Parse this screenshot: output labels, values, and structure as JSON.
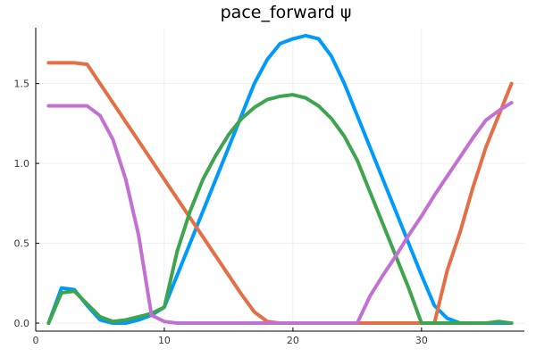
{
  "chart_data": {
    "type": "line",
    "title": "pace_forward ψ",
    "xlabel": "",
    "ylabel": "",
    "xlim": [
      0,
      38
    ],
    "ylim": [
      -0.05,
      1.85
    ],
    "x_ticks": [
      0,
      10,
      20,
      30
    ],
    "y_ticks": [
      0.0,
      0.5,
      1.0,
      1.5
    ],
    "x_tick_labels": [
      "0",
      "10",
      "20",
      "30"
    ],
    "y_tick_labels": [
      "0.0",
      "0.5",
      "1.0",
      "1.5"
    ],
    "grid": true,
    "legend": "none",
    "x": [
      1,
      2,
      3,
      4,
      5,
      6,
      7,
      8,
      9,
      10,
      11,
      12,
      13,
      14,
      15,
      16,
      17,
      18,
      19,
      20,
      21,
      22,
      23,
      24,
      25,
      26,
      27,
      28,
      29,
      30,
      31,
      32,
      33,
      34,
      35,
      36,
      37
    ],
    "series": [
      {
        "color": "#009AFA",
        "values": [
          0.0,
          0.22,
          0.21,
          0.11,
          0.02,
          0.0,
          0.0,
          0.02,
          0.05,
          0.1,
          0.3,
          0.5,
          0.7,
          0.9,
          1.1,
          1.3,
          1.5,
          1.65,
          1.75,
          1.78,
          1.8,
          1.78,
          1.67,
          1.5,
          1.3,
          1.1,
          0.9,
          0.7,
          0.5,
          0.3,
          0.11,
          0.03,
          0.0,
          0.0,
          0.0,
          0.0,
          0.0
        ]
      },
      {
        "color": "#E36F47",
        "values": [
          1.63,
          1.63,
          1.63,
          1.62,
          1.5,
          1.38,
          1.26,
          1.14,
          1.02,
          0.9,
          0.78,
          0.66,
          0.54,
          0.42,
          0.3,
          0.18,
          0.07,
          0.01,
          0.0,
          0.0,
          0.0,
          0.0,
          0.0,
          0.0,
          0.0,
          0.0,
          0.0,
          0.0,
          0.0,
          0.0,
          0.0,
          0.33,
          0.57,
          0.85,
          1.1,
          1.3,
          1.5
        ]
      },
      {
        "color": "#3EA44E",
        "values": [
          0.0,
          0.19,
          0.2,
          0.12,
          0.04,
          0.01,
          0.02,
          0.04,
          0.06,
          0.1,
          0.45,
          0.7,
          0.9,
          1.05,
          1.18,
          1.28,
          1.35,
          1.4,
          1.42,
          1.43,
          1.41,
          1.36,
          1.28,
          1.17,
          1.02,
          0.82,
          0.62,
          0.42,
          0.22,
          0.0,
          0.0,
          0.0,
          0.0,
          0.0,
          0.0,
          0.01,
          0.0
        ]
      },
      {
        "color": "#C271D2",
        "values": [
          1.36,
          1.36,
          1.36,
          1.36,
          1.3,
          1.15,
          0.9,
          0.55,
          0.05,
          0.01,
          0.0,
          0.0,
          0.0,
          0.0,
          0.0,
          0.0,
          0.0,
          0.0,
          0.0,
          0.0,
          0.0,
          0.0,
          0.0,
          0.0,
          0.0,
          0.17,
          0.3,
          0.42,
          0.55,
          0.67,
          0.8,
          0.92,
          1.04,
          1.16,
          1.27,
          1.33,
          1.38
        ]
      }
    ]
  }
}
